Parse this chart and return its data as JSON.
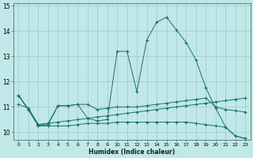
{
  "xlabel": "Humidex (Indice chaleur)",
  "background_color": "#c0e8e8",
  "grid_color": "#a0c8c8",
  "line_color": "#1a7070",
  "xlim": [
    -0.5,
    23.5
  ],
  "ylim": [
    9.7,
    15.1
  ],
  "yticks": [
    10,
    11,
    12,
    13,
    14,
    15
  ],
  "xticks": [
    0,
    1,
    2,
    3,
    4,
    5,
    6,
    7,
    8,
    9,
    10,
    11,
    12,
    13,
    14,
    15,
    16,
    17,
    18,
    19,
    20,
    21,
    22,
    23
  ],
  "line_main_x": [
    0,
    1,
    2,
    3,
    4,
    5,
    6,
    7,
    8,
    9,
    10,
    11,
    12,
    13,
    14,
    15,
    16,
    17,
    18,
    19,
    20,
    21,
    22,
    23
  ],
  "line_main_y": [
    11.45,
    10.9,
    10.25,
    10.3,
    11.05,
    11.05,
    11.1,
    10.55,
    10.45,
    10.5,
    13.2,
    13.2,
    11.6,
    13.65,
    14.35,
    14.55,
    14.05,
    13.55,
    12.85,
    11.75,
    10.95,
    10.2,
    9.85,
    9.75
  ],
  "line_rise_x": [
    0,
    1,
    2,
    3,
    4,
    5,
    6,
    7,
    8,
    9,
    10,
    11,
    12,
    13,
    14,
    15,
    16,
    17,
    18,
    19,
    20,
    21,
    22,
    23
  ],
  "line_rise_y": [
    11.1,
    10.95,
    10.3,
    10.35,
    10.4,
    10.45,
    10.5,
    10.55,
    10.6,
    10.65,
    10.7,
    10.75,
    10.8,
    10.85,
    10.9,
    10.95,
    11.0,
    11.05,
    11.1,
    11.15,
    11.2,
    11.25,
    11.3,
    11.35
  ],
  "line_flat_x": [
    0,
    1,
    2,
    3,
    4,
    5,
    6,
    7,
    8,
    9,
    10,
    11,
    12,
    13,
    14,
    15,
    16,
    17,
    18,
    19,
    20,
    21,
    22,
    23
  ],
  "line_flat_y": [
    11.45,
    10.9,
    10.25,
    10.25,
    10.25,
    10.25,
    10.3,
    10.35,
    10.35,
    10.35,
    10.4,
    10.4,
    10.4,
    10.4,
    10.4,
    10.4,
    10.4,
    10.4,
    10.35,
    10.3,
    10.25,
    10.2,
    9.85,
    9.75
  ],
  "line_upper_x": [
    0,
    1,
    2,
    3,
    4,
    5,
    6,
    7,
    8,
    9,
    10,
    11,
    12,
    13,
    14,
    15,
    16,
    17,
    18,
    19,
    20,
    21,
    22,
    23
  ],
  "line_upper_y": [
    11.45,
    10.9,
    10.3,
    10.35,
    11.05,
    11.05,
    11.1,
    11.1,
    10.9,
    10.95,
    11.0,
    11.0,
    11.0,
    11.05,
    11.1,
    11.15,
    11.2,
    11.25,
    11.3,
    11.35,
    11.0,
    10.9,
    10.85,
    10.8
  ]
}
